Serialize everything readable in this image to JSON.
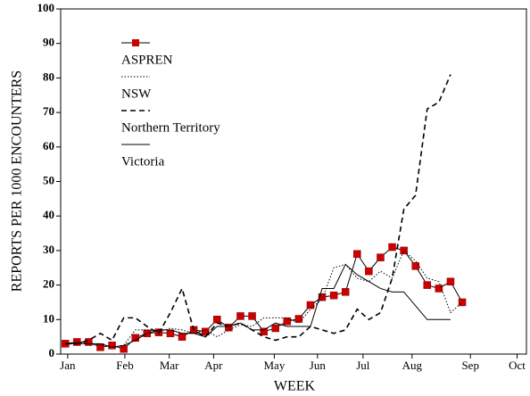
{
  "chart_data": {
    "type": "line",
    "x": [
      1,
      2,
      3,
      4,
      5,
      6,
      7,
      8,
      9,
      10,
      11,
      12,
      13,
      14,
      15,
      16,
      17,
      18,
      19,
      20,
      21,
      22,
      23,
      24,
      25,
      26,
      27,
      28,
      29,
      30,
      31,
      32,
      33,
      34,
      35
    ],
    "series": [
      {
        "name": "ASPREN",
        "color": "#cc0000",
        "style": "solid-marker",
        "values": [
          3,
          3.5,
          3.5,
          2,
          2.5,
          1.5,
          4.7,
          6,
          6.3,
          6,
          5,
          7,
          6.5,
          10,
          7.7,
          11,
          11,
          6.5,
          7.5,
          9.5,
          10.2,
          14.2,
          16.5,
          17,
          18,
          29,
          24,
          28,
          31,
          30,
          25.5,
          20,
          19,
          21,
          15
        ]
      },
      {
        "name": "NSW",
        "color": "#000000",
        "style": "dotted",
        "values": [
          3,
          3.5,
          3,
          2.5,
          2,
          2.5,
          7,
          7,
          6.5,
          7.5,
          7,
          6,
          7,
          5,
          7,
          8.5,
          8,
          10.5,
          10.5,
          10.5,
          9,
          13,
          16,
          25,
          26,
          22,
          21,
          24,
          22,
          30,
          27,
          22,
          21,
          12,
          15
        ]
      },
      {
        "name": "Northern Territory",
        "color": "#000000",
        "style": "dashed",
        "values": [
          3,
          3,
          4,
          6,
          4,
          10.5,
          10.5,
          8,
          6,
          12,
          19,
          7,
          5,
          9,
          8,
          9,
          7,
          5,
          4,
          5,
          5,
          8,
          7,
          6,
          7,
          13,
          10,
          12,
          22,
          42,
          46,
          71,
          73,
          81,
          null
        ]
      },
      {
        "name": "Victoria",
        "color": "#000000",
        "style": "solid",
        "values": [
          3,
          3,
          3,
          3,
          2,
          2.5,
          4,
          6,
          7,
          7,
          6,
          6,
          5,
          8,
          8,
          9,
          7,
          7,
          9,
          8,
          8,
          8,
          19,
          19,
          26,
          23,
          21,
          19,
          18,
          18,
          14,
          10,
          10,
          10,
          null
        ]
      }
    ],
    "xlabel": "WEEK",
    "ylabel": "REPORTS PER 1000 ENCOUNTERS",
    "xlim": [
      0.6,
      40.5
    ],
    "ylim": [
      0,
      100
    ],
    "xticks": [
      {
        "value": 1.2,
        "label": "Jan"
      },
      {
        "value": 6.1,
        "label": "Feb"
      },
      {
        "value": 9.9,
        "label": "Mar"
      },
      {
        "value": 13.7,
        "label": "Apr"
      },
      {
        "value": 18.9,
        "label": "May"
      },
      {
        "value": 22.6,
        "label": "Jun"
      },
      {
        "value": 26.5,
        "label": "Jul"
      },
      {
        "value": 30.7,
        "label": "Aug"
      },
      {
        "value": 35.7,
        "label": "Sep"
      },
      {
        "value": 39.7,
        "label": "Oct"
      }
    ],
    "yticks": [
      0,
      10,
      20,
      30,
      40,
      50,
      60,
      70,
      80,
      90,
      100
    ],
    "legend": "top-left"
  }
}
